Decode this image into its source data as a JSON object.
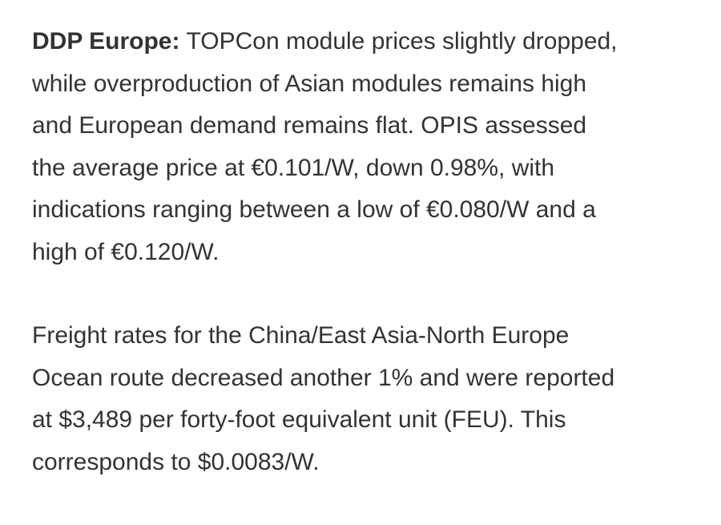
{
  "paragraphs": [
    {
      "lead": "DDP Europe:",
      "lines": [
        "TOPCon module prices slightly dropped,",
        "while overproduction of Asian modules remains high",
        "and European demand remains flat. OPIS assessed",
        "the average price at €0.101/W, down 0.98%, with",
        "indications ranging between a low of €0.080/W and a",
        "high of €0.120/W."
      ]
    },
    {
      "lines": [
        "Freight rates for the China/East Asia-North Europe",
        "Ocean route decreased another 1% and were reported",
        "at $3,489 per forty-foot equivalent unit (FEU). This",
        "corresponds to $0.0083/W."
      ]
    }
  ]
}
